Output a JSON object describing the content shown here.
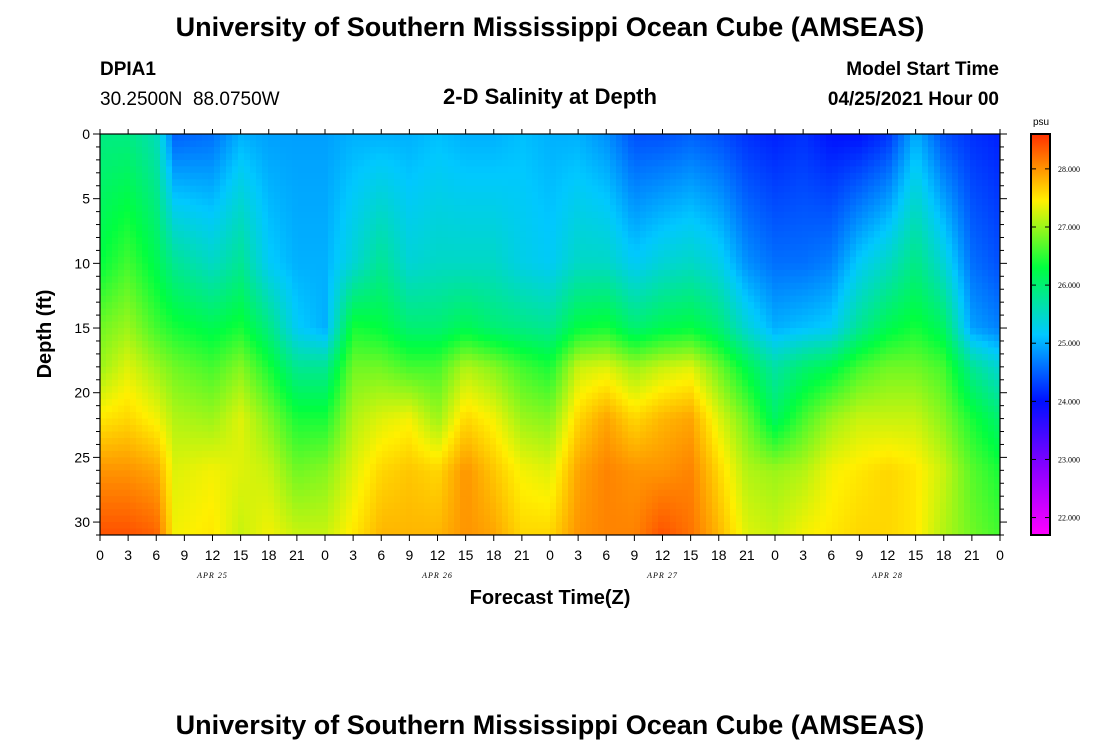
{
  "header": {
    "title": "University of Southern Mississippi Ocean Cube (AMSEAS)",
    "station_id": "DPIA1",
    "coordinates": "30.2500N  88.0750W",
    "plot_title": "2-D Salinity at Depth",
    "model_start_label": "Model Start Time",
    "model_start_value": "04/25/2021 Hour 00"
  },
  "footer": {
    "title": "University of Southern Mississippi Ocean Cube (AMSEAS)"
  },
  "colors": {
    "background": "#ffffff",
    "axis": "#000000",
    "colormap": [
      "#ff00ff",
      "#8a00ff",
      "#0010ff",
      "#00c8ff",
      "#00ff40",
      "#fff000",
      "#ff3000"
    ]
  },
  "chart_data": {
    "type": "heatmap",
    "title": "2-D Salinity at Depth",
    "xlabel": "Forecast Time(Z)",
    "ylabel": "Depth (ft)",
    "x_range_hours": [
      0,
      96
    ],
    "y_range_ft": [
      0,
      31
    ],
    "y_ticks": [
      "0",
      "5",
      "10",
      "15",
      "20",
      "25",
      "30"
    ],
    "y_tick_values": [
      0,
      5,
      10,
      15,
      20,
      25,
      30
    ],
    "x_ticks": [
      "0",
      "3",
      "6",
      "9",
      "12",
      "15",
      "18",
      "21",
      "0",
      "3",
      "6",
      "9",
      "12",
      "15",
      "18",
      "21",
      "0",
      "3",
      "6",
      "9",
      "12",
      "15",
      "18",
      "21",
      "0",
      "3",
      "6",
      "9",
      "12",
      "15",
      "18",
      "21",
      "0"
    ],
    "day_labels": [
      "APR 25",
      "APR 26",
      "APR 27",
      "APR 28"
    ],
    "colorbar": {
      "unit": "psu",
      "range": [
        21.7,
        28.6
      ],
      "ticks": [
        "22.000",
        "23.000",
        "24.000",
        "25.000",
        "26.000",
        "27.000",
        "28.000"
      ],
      "tick_values": [
        22,
        23,
        24,
        25,
        26,
        27,
        28
      ]
    },
    "field_keyframes_hours": [
      0,
      3,
      6,
      8,
      12,
      15,
      18,
      21,
      24,
      27,
      30,
      33,
      36,
      39,
      42,
      45,
      48,
      51,
      54,
      57,
      60,
      63,
      66,
      69,
      72,
      75,
      78,
      81,
      84,
      87,
      90,
      93,
      96
    ],
    "profile_depths_ft": [
      0,
      10,
      15,
      18,
      22,
      26,
      31
    ],
    "profiles_psu": [
      [
        25.9,
        26.3,
        26.8,
        27.0,
        27.5,
        28.0,
        28.4
      ],
      [
        25.9,
        26.6,
        27.0,
        27.3,
        27.6,
        28.0,
        28.4
      ],
      [
        25.6,
        26.2,
        26.6,
        27.0,
        27.4,
        27.9,
        28.3
      ],
      [
        24.5,
        25.8,
        26.4,
        26.8,
        27.1,
        27.3,
        27.4
      ],
      [
        24.6,
        25.5,
        26.2,
        26.6,
        27.0,
        27.4,
        27.5
      ],
      [
        25.0,
        25.8,
        26.4,
        26.9,
        27.3,
        27.3,
        27.2
      ],
      [
        24.9,
        25.2,
        25.9,
        26.4,
        26.9,
        27.2,
        27.4
      ],
      [
        24.9,
        25.0,
        25.2,
        25.8,
        26.4,
        26.8,
        27.2
      ],
      [
        24.9,
        25.0,
        25.0,
        25.8,
        26.4,
        26.9,
        27.2
      ],
      [
        25.0,
        25.4,
        26.4,
        26.8,
        27.1,
        27.3,
        27.5
      ],
      [
        25.0,
        25.8,
        26.3,
        26.8,
        27.3,
        27.6,
        27.8
      ],
      [
        25.0,
        25.4,
        26.0,
        26.6,
        27.4,
        27.7,
        27.8
      ],
      [
        25.1,
        25.5,
        26.0,
        26.6,
        27.0,
        27.6,
        27.8
      ],
      [
        25.0,
        25.5,
        26.2,
        27.1,
        27.6,
        28.0,
        28.0
      ],
      [
        25.0,
        25.5,
        26.0,
        26.9,
        27.4,
        27.7,
        27.9
      ],
      [
        25.1,
        25.3,
        25.9,
        26.6,
        27.0,
        27.4,
        27.6
      ],
      [
        25.0,
        25.2,
        25.8,
        26.4,
        26.9,
        27.3,
        27.6
      ],
      [
        25.0,
        25.5,
        26.3,
        27.2,
        27.6,
        27.9,
        28.0
      ],
      [
        24.8,
        25.5,
        26.4,
        27.3,
        27.9,
        28.1,
        28.1
      ],
      [
        24.4,
        25.2,
        26.0,
        27.0,
        27.6,
        28.0,
        28.1
      ],
      [
        24.4,
        25.4,
        26.2,
        27.2,
        27.8,
        28.0,
        28.4
      ],
      [
        24.5,
        25.5,
        26.3,
        27.3,
        27.9,
        28.1,
        28.2
      ],
      [
        24.4,
        25.3,
        26.0,
        26.8,
        27.3,
        27.6,
        27.8
      ],
      [
        24.2,
        24.8,
        25.4,
        26.2,
        26.8,
        27.1,
        27.3
      ],
      [
        24.1,
        24.6,
        25.0,
        25.7,
        26.1,
        27.0,
        27.2
      ],
      [
        24.2,
        24.6,
        25.1,
        26.0,
        26.6,
        27.1,
        27.4
      ],
      [
        24.0,
        24.7,
        25.2,
        26.2,
        27.0,
        27.4,
        27.5
      ],
      [
        24.0,
        25.2,
        25.8,
        26.6,
        27.2,
        27.5,
        27.6
      ],
      [
        24.2,
        25.5,
        26.2,
        26.8,
        27.2,
        27.6,
        27.6
      ],
      [
        25.0,
        25.9,
        26.4,
        26.8,
        27.2,
        27.5,
        27.5
      ],
      [
        24.4,
        25.4,
        26.1,
        26.6,
        26.9,
        27.2,
        27.1
      ],
      [
        24.2,
        24.6,
        24.9,
        25.8,
        26.4,
        26.7,
        26.8
      ],
      [
        24.1,
        24.4,
        24.7,
        25.4,
        26.0,
        26.4,
        26.6
      ]
    ]
  }
}
